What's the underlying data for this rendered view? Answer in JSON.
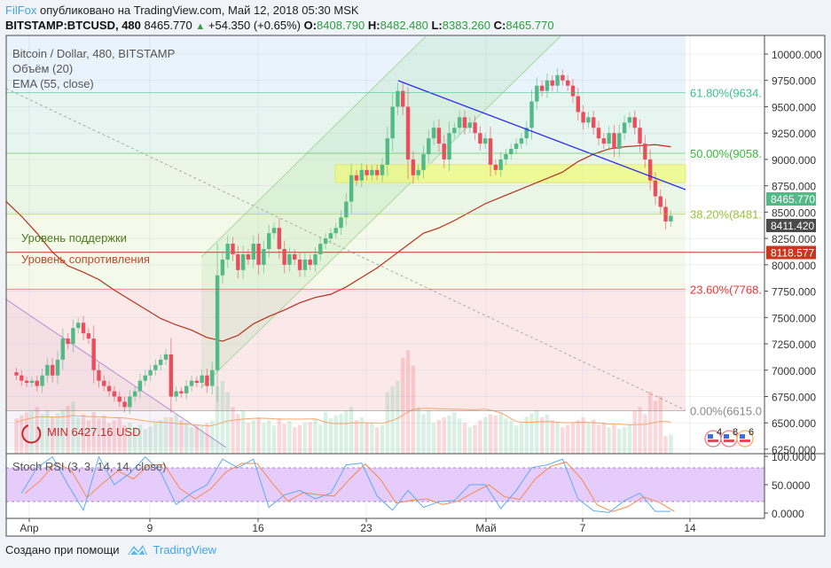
{
  "header": {
    "author": "FilFox",
    "published": "опубликовано на TradingView.com, Май 12, 2018 05:30 MSK",
    "symbol": "BITSTAMP:BTCUSD, 480",
    "last": "8465.770",
    "change": "+54.350 (+0.65%)",
    "o_label": "O:",
    "o": "8408.790",
    "h_label": "H:",
    "h": "8482.480",
    "l_label": "L:",
    "l": "8383.260",
    "c_label": "C:",
    "c": "8465.770",
    "up_color": "#2e9e3e"
  },
  "legend": {
    "title": "Bitcoin / Dollar, 480, BITSTAMP",
    "volume": "Объём (20)",
    "ema": "EMA (55, close)",
    "stoch": "Stoch RSI (3, 3, 14, 14, close)"
  },
  "annotations": {
    "support": "Уровень поддержки",
    "resistance": "Уровень сопротивления",
    "min": "MIN 6427.16 USD"
  },
  "fib_levels": [
    {
      "label": "61.80%(9634.",
      "price": 9634,
      "color": "#3cbf8c"
    },
    {
      "label": "50.00%(9058.",
      "price": 9058,
      "color": "#3cb83c"
    },
    {
      "label": "38.20%(8481.",
      "price": 8481,
      "color": "#9cc33a"
    },
    {
      "label": "23.60%(7768.",
      "price": 7768,
      "color": "#e53935"
    },
    {
      "label": "0.00%(6615.0",
      "price": 6615,
      "color": "#8a8a8a"
    }
  ],
  "price_axis": [
    "10000.000",
    "9750.000",
    "9500.000",
    "9250.000",
    "9000.000",
    "8750.000",
    "8500.000",
    "8250.000",
    "8000.000",
    "7750.000",
    "7500.000",
    "7250.000",
    "7000.000",
    "6750.000",
    "6500.000",
    "6250.000"
  ],
  "price_tags": [
    {
      "label": "8465.770",
      "price": 8465.77,
      "color": "#53b987"
    },
    {
      "label": "8411.420",
      "price": 8411.42,
      "color": "#4a4a4a"
    },
    {
      "label": "8118.577",
      "price": 8118.577,
      "color": "#c8361f"
    }
  ],
  "stoch_axis": [
    "100.0000",
    "50.0000",
    "0.0000"
  ],
  "time_axis": [
    "Апр",
    "9",
    "16",
    "23",
    "Май",
    "7",
    "14"
  ],
  "events": [
    "4",
    "8",
    "6"
  ],
  "colors": {
    "up": "#53b987",
    "down": "#eb4d5c",
    "ema": "#b5301b",
    "trend": "#2b2bee",
    "stoch_k": "#5aa9f5",
    "stoch_d": "#f5894a",
    "stoch_band": "#e6ccfa"
  },
  "chart_data": {
    "type": "candlestick",
    "interval": "480",
    "ylim": [
      6250,
      10000
    ],
    "days": [
      {
        "d": "03-31",
        "c": [
          6950,
          6900,
          6880
        ],
        "v": 40,
        "k": 35,
        "ema": 8460
      },
      {
        "d": "04-01",
        "c": [
          6900,
          6850,
          6950
        ],
        "v": 45,
        "k": 80,
        "ema": 8300
      },
      {
        "d": "04-02",
        "c": [
          7050,
          6950,
          7100
        ],
        "v": 42,
        "k": 99,
        "ema": 8120
      },
      {
        "d": "04-03",
        "c": [
          7300,
          7250,
          7400
        ],
        "v": 50,
        "k": 50,
        "ema": 7990
      },
      {
        "d": "04-04",
        "c": [
          7450,
          7350,
          7300
        ],
        "v": 38,
        "k": 5,
        "ema": 7930
      },
      {
        "d": "04-05",
        "c": [
          7000,
          6900,
          6850
        ],
        "v": 40,
        "k": 99,
        "ema": 7860
      },
      {
        "d": "04-06",
        "c": [
          6800,
          6750,
          6700
        ],
        "v": 35,
        "k": 50,
        "ema": 7760
      },
      {
        "d": "04-07",
        "c": [
          6650,
          6750,
          6800
        ],
        "v": 30,
        "k": 70,
        "ema": 7670
      },
      {
        "d": "04-08",
        "c": [
          6900,
          6950,
          7000
        ],
        "v": 28,
        "k": 99,
        "ema": 7580
      },
      {
        "d": "04-09",
        "c": [
          7050,
          7100,
          7150
        ],
        "v": 35,
        "k": 72,
        "ema": 7490
      },
      {
        "d": "04-10",
        "c": [
          6750,
          6800,
          6780
        ],
        "v": 38,
        "k": 15,
        "ema": 7430
      },
      {
        "d": "04-11",
        "c": [
          6850,
          6900,
          6880
        ],
        "v": 30,
        "k": 35,
        "ema": 7380
      },
      {
        "d": "04-12",
        "c": [
          6950,
          6850,
          7000
        ],
        "v": 32,
        "k": 50,
        "ema": 7310
      },
      {
        "d": "04-13",
        "c": [
          7900,
          8050,
          8200
        ],
        "v": 70,
        "k": 95,
        "ema": 7275
      },
      {
        "d": "04-14",
        "c": [
          8100,
          7950,
          8100
        ],
        "v": 45,
        "k": 80,
        "ema": 7330
      },
      {
        "d": "04-15",
        "c": [
          8050,
          8200,
          8000
        ],
        "v": 35,
        "k": 95,
        "ema": 7440
      },
      {
        "d": "04-16",
        "c": [
          8150,
          8300,
          8350
        ],
        "v": 32,
        "k": 10,
        "ema": 7510
      },
      {
        "d": "04-17",
        "c": [
          8150,
          8000,
          8100
        ],
        "v": 34,
        "k": 32,
        "ema": 7570
      },
      {
        "d": "04-18",
        "c": [
          8050,
          7950,
          8050
        ],
        "v": 30,
        "k": 40,
        "ema": 7640
      },
      {
        "d": "04-19",
        "c": [
          8000,
          8100,
          8200
        ],
        "v": 33,
        "k": 25,
        "ema": 7690
      },
      {
        "d": "04-20",
        "c": [
          8250,
          8300,
          8350
        ],
        "v": 40,
        "k": 35,
        "ema": 7720
      },
      {
        "d": "04-21",
        "c": [
          8450,
          8600,
          8850
        ],
        "v": 45,
        "k": 85,
        "ema": 7790
      },
      {
        "d": "04-22",
        "c": [
          8800,
          8900,
          8850
        ],
        "v": 35,
        "k": 88,
        "ema": 7880
      },
      {
        "d": "04-23",
        "c": [
          8900,
          8850,
          8950
        ],
        "v": 30,
        "k": 30,
        "ema": 7970
      },
      {
        "d": "04-24",
        "c": [
          9200,
          9500,
          9650
        ],
        "v": 70,
        "k": 5,
        "ema": 8080
      },
      {
        "d": "04-25",
        "c": [
          9500,
          9000,
          8850
        ],
        "v": 100,
        "k": 40,
        "ema": 8190
      },
      {
        "d": "04-26",
        "c": [
          8900,
          9050,
          9200
        ],
        "v": 45,
        "k": 10,
        "ema": 8300
      },
      {
        "d": "04-27",
        "c": [
          9300,
          9150,
          9000
        ],
        "v": 35,
        "k": 20,
        "ema": 8350
      },
      {
        "d": "04-28",
        "c": [
          9250,
          9300,
          9400
        ],
        "v": 40,
        "k": 22,
        "ema": 8420
      },
      {
        "d": "04-29",
        "c": [
          9300,
          9350,
          9250
        ],
        "v": 30,
        "k": 50,
        "ema": 8500
      },
      {
        "d": "04-30",
        "c": [
          9150,
          9200,
          8950
        ],
        "v": 38,
        "k": 50,
        "ema": 8580
      },
      {
        "d": "05-01",
        "c": [
          8900,
          9000,
          9050
        ],
        "v": 40,
        "k": 8,
        "ema": 8640
      },
      {
        "d": "05-02",
        "c": [
          9100,
          9150,
          9200
        ],
        "v": 32,
        "k": 40,
        "ema": 8700
      },
      {
        "d": "05-03",
        "c": [
          9300,
          9550,
          9700
        ],
        "v": 42,
        "k": 80,
        "ema": 8760
      },
      {
        "d": "05-04",
        "c": [
          9650,
          9750,
          9700
        ],
        "v": 38,
        "k": 85,
        "ema": 8820
      },
      {
        "d": "05-05",
        "c": [
          9800,
          9750,
          9700
        ],
        "v": 30,
        "k": 95,
        "ema": 8880
      },
      {
        "d": "05-06",
        "c": [
          9600,
          9450,
          9350
        ],
        "v": 35,
        "k": 25,
        "ema": 8980
      },
      {
        "d": "05-07",
        "c": [
          9400,
          9300,
          9200
        ],
        "v": 33,
        "k": 4,
        "ema": 9050
      },
      {
        "d": "05-08",
        "c": [
          9150,
          9250,
          9100
        ],
        "v": 30,
        "k": 1,
        "ema": 9100
      },
      {
        "d": "05-09",
        "c": [
          9250,
          9350,
          9400
        ],
        "v": 28,
        "k": 22,
        "ema": 9120
      },
      {
        "d": "05-10",
        "c": [
          9300,
          9150,
          9000
        ],
        "v": 45,
        "k": 35,
        "ema": 9130
      },
      {
        "d": "05-11",
        "c": [
          8800,
          8650,
          8550
        ],
        "v": 60,
        "k": 3,
        "ema": 9140
      },
      {
        "d": "05-12",
        "c": [
          8411.42,
          8465.77
        ],
        "v": 20,
        "k": 3,
        "ema": 9120
      }
    ]
  },
  "footer": {
    "created": "Создано при помощи",
    "brand": "TradingView"
  }
}
